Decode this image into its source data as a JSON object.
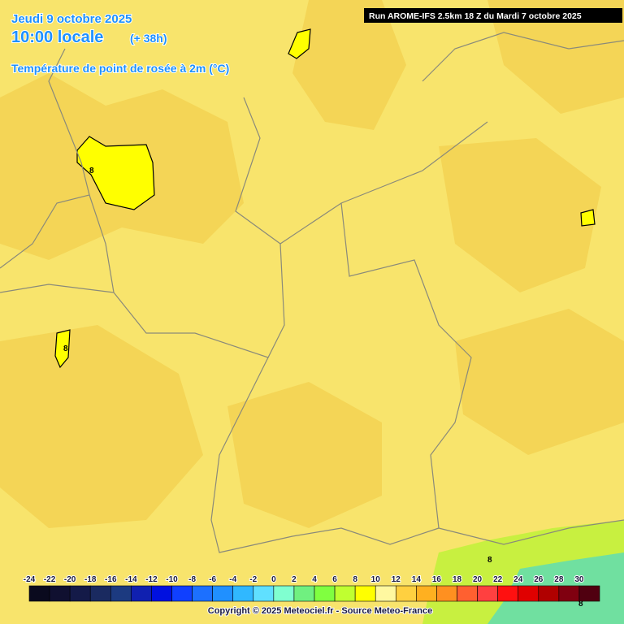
{
  "header": {
    "date": "Jeudi 9 octobre 2025",
    "time": "10:00 locale",
    "lead": "(+ 38h)",
    "parameter": "Température de point de rosée à 2m (°C)",
    "run": "Run AROME-IFS 2.5km 18 Z du Mardi 7 octobre 2025"
  },
  "map": {
    "contour_labels": [
      8,
      8,
      8,
      8
    ]
  },
  "legend": {
    "ticks": [
      -24,
      -22,
      -20,
      -18,
      -16,
      -14,
      -12,
      -10,
      -8,
      -6,
      -4,
      -2,
      0,
      2,
      4,
      6,
      8,
      10,
      12,
      14,
      16,
      18,
      20,
      22,
      24,
      26,
      28,
      30
    ],
    "colors": [
      "#0a0a1e",
      "#101030",
      "#141a48",
      "#1a2a60",
      "#1c3a80",
      "#1020b0",
      "#0010e0",
      "#1040ff",
      "#1c70ff",
      "#2090ff",
      "#30b8ff",
      "#60e0ff",
      "#80ffd0",
      "#70f080",
      "#80ff40",
      "#c0ff30",
      "#ffff00",
      "#fff8a0",
      "#ffd040",
      "#ffb020",
      "#ff9020",
      "#ff6030",
      "#ff4040",
      "#ff1010",
      "#e00000",
      "#b00000",
      "#800010",
      "#500010"
    ]
  },
  "footer": {
    "copyright": "Copyright © 2025 Meteociel.fr - Source Meteo-France"
  }
}
